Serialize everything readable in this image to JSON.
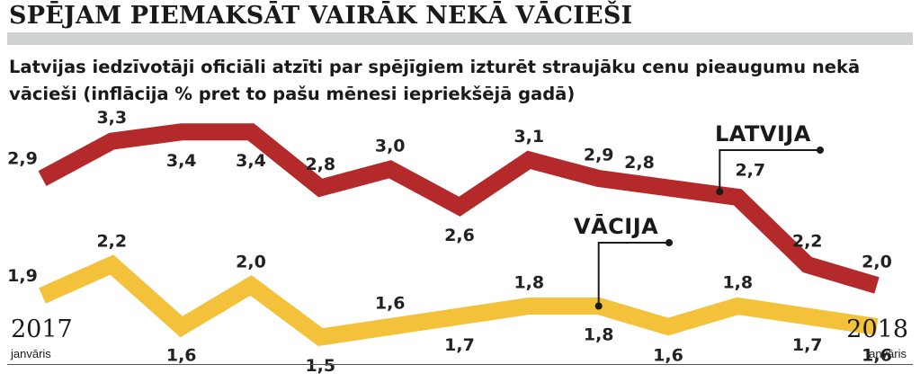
{
  "header": {
    "headline": "SPĒJAM PIEMAKSĀT VAIRĀK NEKĀ VĀCIEŠI",
    "subtitle": "Latvijas iedzīvotāji oficiāli atzīti par spējīgiem izturēt straujāku cenu pieaugumu nekā vācieši (inflācija % pret to pašu mēnesi iepriekšējā gadā)"
  },
  "chart_data": {
    "type": "line",
    "title": "SPĒJAM PIEMAKSĀT VAIRĀK NEKĀ VĀCIEŠI",
    "subtitle": "Latvijas iedzīvotāji oficiāli atzīti par spējīgiem izturēt straujāku cenu pieaugumu nekā vācieši (inflācija % pret to pašu mēnesi iepriekšējā gadā)",
    "x_start": {
      "year": "2017",
      "month": "janvāris"
    },
    "x_end": {
      "year": "2018",
      "month": "janvāris"
    },
    "grid": false,
    "legend": "inline",
    "series": [
      {
        "name": "LATVIJA",
        "color": "#b42a2a",
        "values": [
          2.9,
          3.3,
          3.4,
          3.4,
          2.8,
          3.0,
          2.6,
          3.1,
          2.9,
          2.8,
          2.7,
          2.2,
          2.0
        ],
        "labels": [
          "2,9",
          "3,3",
          "3,4",
          "3,4",
          "2,8",
          "3,0",
          "2,6",
          "3,1",
          "2,9",
          "2,8",
          "2,7",
          "2,2",
          "2,0"
        ]
      },
      {
        "name": "VĀCIJA",
        "color": "#f3c13a",
        "values": [
          1.9,
          2.2,
          1.6,
          2.0,
          1.5,
          1.6,
          1.7,
          1.8,
          1.8,
          1.6,
          1.8,
          1.7,
          1.6
        ],
        "labels": [
          "1,9",
          "2,2",
          "1,6",
          "2,0",
          "1,5",
          "1,6",
          "1,7",
          "1,8",
          "1,8",
          "1,6",
          "1,8",
          "1,7",
          "1,6"
        ]
      }
    ]
  }
}
